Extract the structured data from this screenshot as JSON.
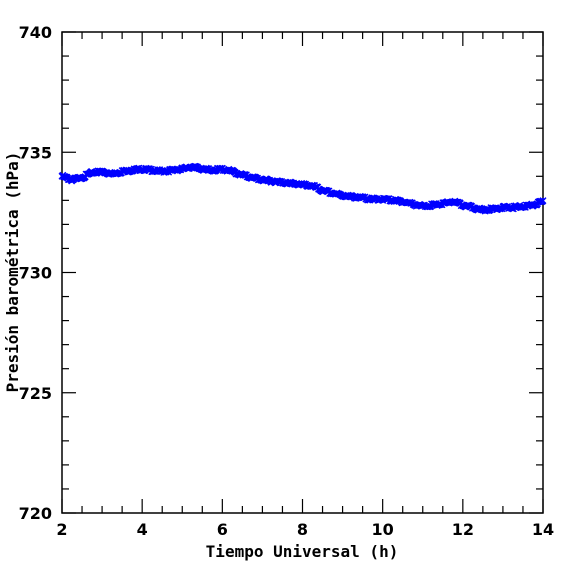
{
  "chart_data": {
    "type": "scatter",
    "xlabel": "Tiempo Universal (h)",
    "ylabel": "Presión barométrica (hPa)",
    "xlim": [
      2,
      14
    ],
    "ylim": [
      720,
      740
    ],
    "x_ticks": [
      "2",
      "4",
      "6",
      "8",
      "10",
      "12",
      "14"
    ],
    "y_ticks": [
      "720",
      "725",
      "730",
      "735",
      "740"
    ],
    "grid": false,
    "marker": "cross",
    "series": [
      {
        "color": "#0000ff",
        "x": [
          2.0,
          2.25,
          2.5,
          2.75,
          3.0,
          3.25,
          3.5,
          3.75,
          4.0,
          4.25,
          4.5,
          4.75,
          5.0,
          5.25,
          5.5,
          5.75,
          6.0,
          6.25,
          6.5,
          6.75,
          7.0,
          7.25,
          7.5,
          7.75,
          8.0,
          8.25,
          8.5,
          8.75,
          9.0,
          9.25,
          9.5,
          9.75,
          10.0,
          10.25,
          10.5,
          10.75,
          11.0,
          11.25,
          11.5,
          11.75,
          12.0,
          12.25,
          12.5,
          12.75,
          13.0,
          13.25,
          13.5,
          13.75,
          14.0
        ],
        "y": [
          734.0,
          733.85,
          733.95,
          734.15,
          734.2,
          734.1,
          734.2,
          734.25,
          734.3,
          734.25,
          734.2,
          734.25,
          734.3,
          734.4,
          734.3,
          734.25,
          734.3,
          734.2,
          734.05,
          733.95,
          733.85,
          733.8,
          733.75,
          733.7,
          733.65,
          733.6,
          733.4,
          733.3,
          733.2,
          733.15,
          733.1,
          733.05,
          733.05,
          733.0,
          732.95,
          732.85,
          732.75,
          732.8,
          732.85,
          732.95,
          732.8,
          732.7,
          732.6,
          732.65,
          732.7,
          732.7,
          732.75,
          732.8,
          732.95
        ]
      }
    ]
  }
}
